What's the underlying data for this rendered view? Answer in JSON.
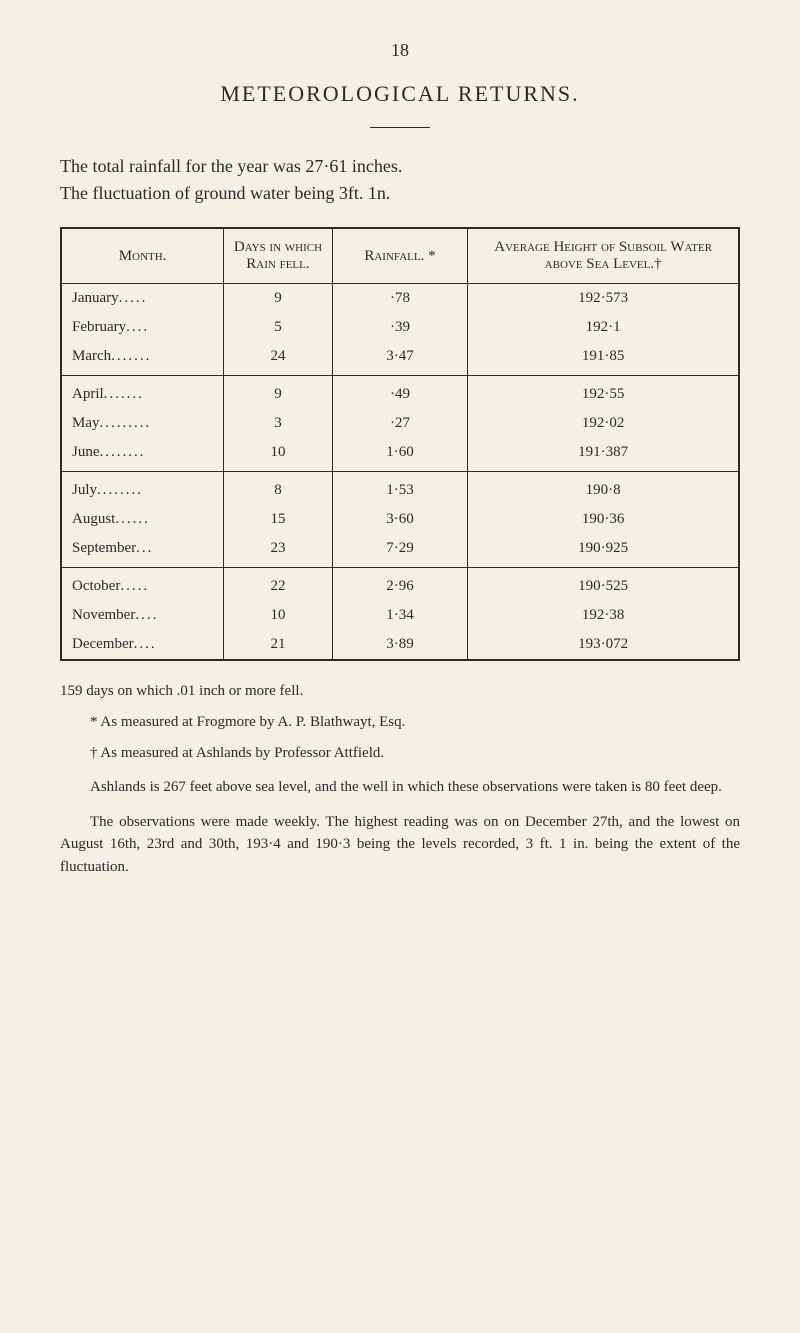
{
  "page_number": "18",
  "main_title": "METEOROLOGICAL   RETURNS.",
  "intro_line1": "The total rainfall for the year was 27·61 inches.",
  "intro_line2": "The fluctuation of ground water being 3ft. 1n.",
  "table": {
    "headers": {
      "month": "Month.",
      "days": "Days in which Rain fell.",
      "rainfall": "Rainfall. *",
      "height": "Average Height of Subsoil Water above Sea Level.†"
    },
    "groups": [
      [
        {
          "month": "January",
          "days": "9",
          "rainfall": "·78",
          "height": "192·573"
        },
        {
          "month": "February",
          "days": "5",
          "rainfall": "·39",
          "height": "192·1"
        },
        {
          "month": "March",
          "days": "24",
          "rainfall": "3·47",
          "height": "191·85"
        }
      ],
      [
        {
          "month": "April",
          "days": "9",
          "rainfall": "·49",
          "height": "192·55"
        },
        {
          "month": "May",
          "days": "3",
          "rainfall": "·27",
          "height": "192·02"
        },
        {
          "month": "June",
          "days": "10",
          "rainfall": "1·60",
          "height": "191·387"
        }
      ],
      [
        {
          "month": "July",
          "days": "8",
          "rainfall": "1·53",
          "height": "190·8"
        },
        {
          "month": "August",
          "days": "15",
          "rainfall": "3·60",
          "height": "190·36"
        },
        {
          "month": "September",
          "days": "23",
          "rainfall": "7·29",
          "height": "190·925"
        }
      ],
      [
        {
          "month": "October",
          "days": "22",
          "rainfall": "2·96",
          "height": "190·525"
        },
        {
          "month": "November",
          "days": "10",
          "rainfall": "1·34",
          "height": "192·38"
        },
        {
          "month": "December",
          "days": "21",
          "rainfall": "3·89",
          "height": "193·072"
        }
      ]
    ]
  },
  "footnotes": {
    "summary": "159 days on which .01 inch or more fell.",
    "star": "* As measured at Frogmore by A. P. Blathwayt, Esq.",
    "dagger": "† As measured at Ashlands by Professor Attfield."
  },
  "para1": "Ashlands is 267 feet above sea level, and the well in which these observations were taken is 80 feet deep.",
  "para2": "The observations were made weekly. The highest reading was on on December 27th, and the lowest on August 16th, 23rd and 30th, 193·4 and 190·3 being the levels recorded, 3 ft. 1 in. being the extent of the fluctuation."
}
